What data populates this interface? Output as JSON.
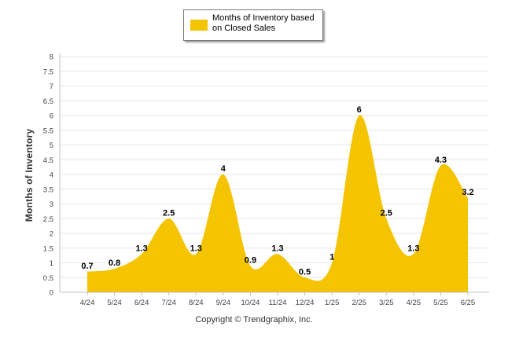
{
  "chart_data": {
    "type": "area",
    "categories": [
      "4/24",
      "5/24",
      "6/24",
      "7/24",
      "8/24",
      "9/24",
      "10/24",
      "11/24",
      "12/24",
      "1/25",
      "2/25",
      "3/25",
      "4/25",
      "5/25",
      "6/25"
    ],
    "series": [
      {
        "name": "Months of Inventory based on Closed Sales",
        "values": [
          0.7,
          0.8,
          1.3,
          2.5,
          1.3,
          4,
          0.9,
          1.3,
          0.5,
          1,
          6,
          2.5,
          1.3,
          4.3,
          3.2
        ]
      }
    ],
    "data_labels": [
      "0.7",
      "0.8",
      "1.3",
      "2.5",
      "1.3",
      "4",
      "0.9",
      "1.3",
      "0.5",
      "1",
      "6",
      "2.5",
      "1.3",
      "4.3",
      "3.2"
    ],
    "ylabel": "Months of Inventory",
    "xlabel": "",
    "ylim": [
      0,
      8
    ],
    "yticks": [
      "0",
      "0.5",
      "1",
      "1.5",
      "2",
      "2.5",
      "3",
      "3.5",
      "4",
      "4.5",
      "5",
      "5.5",
      "6",
      "6.5",
      "7",
      "7.5",
      "8"
    ],
    "grid": true,
    "legend_position": "top-center",
    "colors": {
      "fill": "#f5c400",
      "grid": "#e6e6e6",
      "axis": "#c0c0c0"
    }
  },
  "legend": {
    "label": "Months of Inventory based on Closed Sales"
  },
  "footer": {
    "copyright": "Copyright © Trendgraphix, Inc."
  }
}
